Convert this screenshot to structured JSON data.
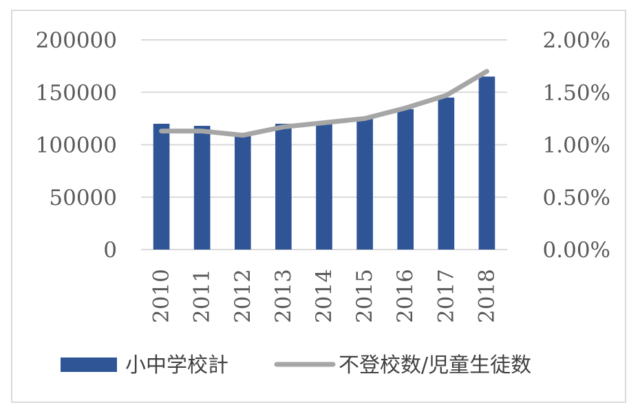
{
  "chart_data": {
    "type": "bar",
    "categories": [
      "2010",
      "2011",
      "2012",
      "2013",
      "2014",
      "2015",
      "2016",
      "2017",
      "2018"
    ],
    "series": [
      {
        "name": "小中学校計",
        "type": "bar",
        "axis": "left",
        "color": "#2f5597",
        "values": [
          120000,
          118000,
          110000,
          120000,
          122000,
          125000,
          134000,
          145000,
          165000
        ]
      },
      {
        "name": "不登校数/児童生徒数",
        "type": "line",
        "axis": "right",
        "color": "#a6a6a6",
        "values": [
          0.0113,
          0.0113,
          0.0109,
          0.0117,
          0.0121,
          0.0125,
          0.0135,
          0.0147,
          0.017
        ]
      }
    ],
    "y_left": {
      "ylim": [
        0,
        200000
      ],
      "ticks": [
        "0",
        "50000",
        "100000",
        "150000",
        "200000"
      ]
    },
    "y_right": {
      "ylim": [
        0,
        0.02
      ],
      "ticks": [
        "0.00%",
        "0.50%",
        "1.00%",
        "1.50%",
        "2.00%"
      ]
    },
    "title": "",
    "xlabel": "",
    "ylabel": "",
    "grid": true,
    "legend": "bottom",
    "gridColor": "#d9d9d9"
  }
}
